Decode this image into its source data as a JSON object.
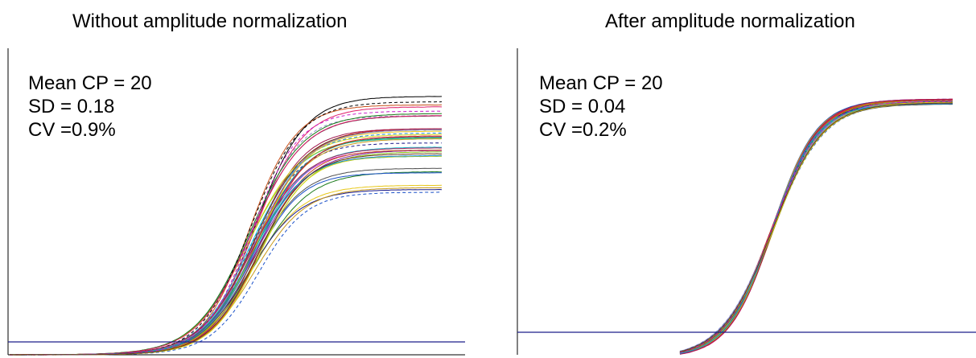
{
  "chart_data": [
    {
      "type": "line",
      "title": "Without amplitude normalization",
      "xlabel": "",
      "ylabel": "",
      "grid": false,
      "annotations": {
        "mean_cp": "Mean CP = 20",
        "sd": "SD = 0.18",
        "cv": "CV =0.9%"
      },
      "threshold_line": {
        "color": "#1c1f8a"
      },
      "curve_family": {
        "count": 40,
        "mean_cp": 20,
        "sd": 0.18,
        "plateau_min_relative": 0.56,
        "plateau_max_relative": 1.0,
        "colors": [
          "#1a7a1a",
          "#d81b1b",
          "#19c8d8",
          "#1a1a8a",
          "#000000",
          "#e01f6a",
          "#c89a1a",
          "#7d1fa0",
          "#8ac81a",
          "#e8c81a",
          "#8a8ac8",
          "#1a50c8",
          "#c8501a",
          "#1aa07d",
          "#a01a50",
          "#505050",
          "#d8d81a",
          "#1a8ad8",
          "#c81ac8",
          "#6a3a1a"
        ]
      }
    },
    {
      "type": "line",
      "title": "After amplitude normalization",
      "xlabel": "",
      "ylabel": "",
      "grid": false,
      "annotations": {
        "mean_cp": "Mean CP = 20",
        "sd": "SD = 0.04",
        "cv": "CV =0.2%"
      },
      "threshold_line": {
        "color": "#1c1f8a"
      },
      "curve_family": {
        "count": 40,
        "mean_cp": 20,
        "sd": 0.04,
        "plateau_min_relative": 0.97,
        "plateau_max_relative": 1.0,
        "colors": [
          "#1a7a1a",
          "#d81b1b",
          "#19c8d8",
          "#1a1a8a",
          "#000000",
          "#e01f6a",
          "#c89a1a",
          "#7d1fa0",
          "#8ac81a",
          "#e8c81a",
          "#8a8ac8",
          "#1a50c8",
          "#c8501a",
          "#1aa07d",
          "#a01a50",
          "#505050",
          "#d8d81a",
          "#1a8ad8",
          "#c81ac8",
          "#6a3a1a"
        ]
      }
    }
  ]
}
